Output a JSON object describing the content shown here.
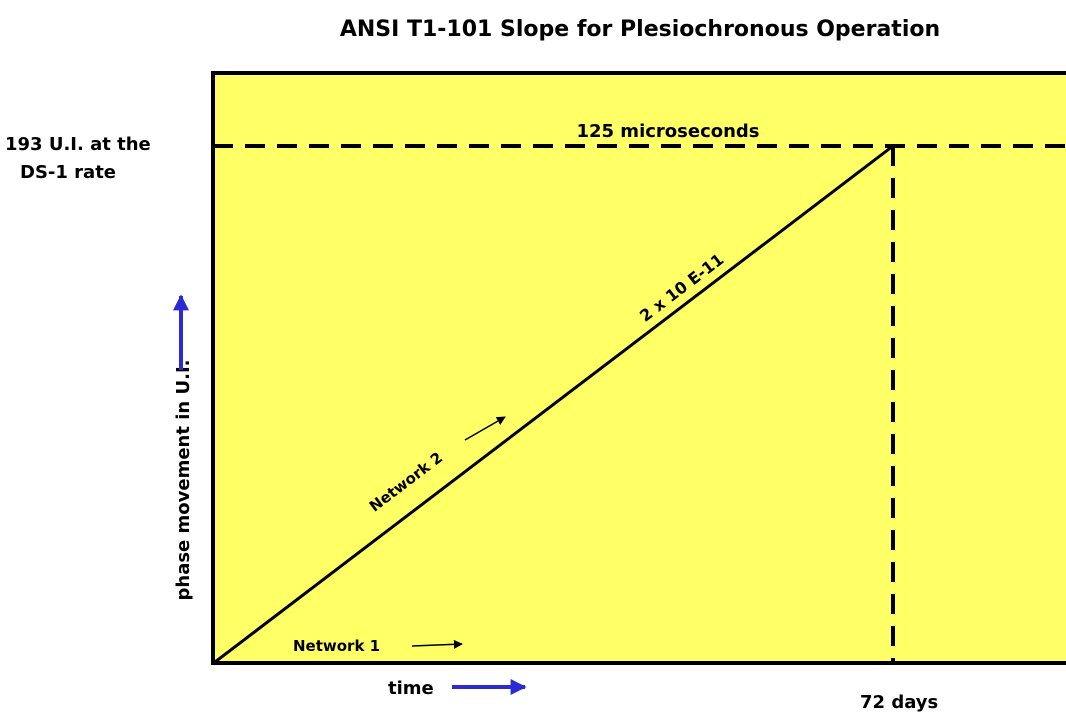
{
  "title": "ANSI T1-101 Slope for Plesiochronous Operation",
  "y_axis": {
    "label": "phase movement in U.I.",
    "top_label_line1": "193 U.I. at the",
    "top_label_line2": "DS-1 rate"
  },
  "x_axis": {
    "label": "time",
    "end_label": "72 days"
  },
  "annotations": {
    "top": "125 microseconds",
    "slope": "2 x 10 E-11",
    "network1": "Network 1",
    "network2": "Network 2"
  }
}
